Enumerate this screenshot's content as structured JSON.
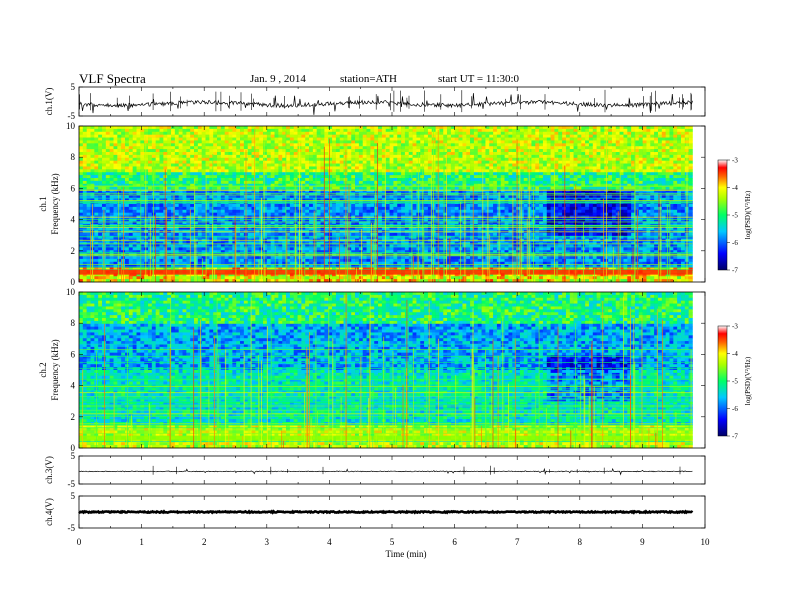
{
  "header": {
    "title": "VLF Spectra",
    "date": "Jan. 9 , 2014",
    "station": "station=ATH",
    "start": "start UT =  11:30:0"
  },
  "chart_data": {
    "type": "heatmap",
    "xlabel": "Time (min)",
    "xlim": [
      0,
      10
    ],
    "x_ticks": [
      "0",
      "1",
      "2",
      "3",
      "4",
      "5",
      "6",
      "7",
      "8",
      "9",
      "10"
    ],
    "data_end_min": 9.8,
    "panels": [
      {
        "id": "ch1v",
        "kind": "waveform",
        "ylabel": "ch.1(V)",
        "ylim": [
          -5,
          5
        ],
        "y_ticks": [
          "5",
          "-5"
        ],
        "baseline_v": -0.8
      },
      {
        "id": "spec1",
        "kind": "spectrogram",
        "ylabel_top": "ch.1",
        "ylabel": "Frequency (kHz)",
        "ylim": [
          0,
          10
        ],
        "y_ticks": [
          "0",
          "2",
          "4",
          "6",
          "8",
          "10"
        ],
        "colorbar": {
          "label": "log(PSD)(V²/Hz)",
          "range": [
            -7,
            -3
          ],
          "ticks": [
            "-3",
            "-4",
            "-5",
            "-6",
            "-7"
          ]
        }
      },
      {
        "id": "spec2",
        "kind": "spectrogram",
        "ylabel_top": "ch.2",
        "ylabel": "Frequency (kHz)",
        "ylim": [
          0,
          10
        ],
        "y_ticks": [
          "0",
          "2",
          "4",
          "6",
          "8",
          "10"
        ],
        "colorbar": {
          "label": "log(PSD)(V²/Hz)",
          "range": [
            -7,
            -3
          ],
          "ticks": [
            "-3",
            "-4",
            "-5",
            "-6",
            "-7"
          ]
        }
      },
      {
        "id": "ch3v",
        "kind": "waveform",
        "ylabel": "ch.3(V)",
        "ylim": [
          -5,
          5
        ],
        "y_ticks": [
          "5",
          "-5"
        ],
        "baseline_v": -0.5
      },
      {
        "id": "ch4v",
        "kind": "waveform",
        "ylabel": "ch.4(V)",
        "ylim": [
          -5,
          5
        ],
        "y_ticks": [
          "5",
          "-5"
        ],
        "baseline_v": 0.0
      }
    ]
  }
}
